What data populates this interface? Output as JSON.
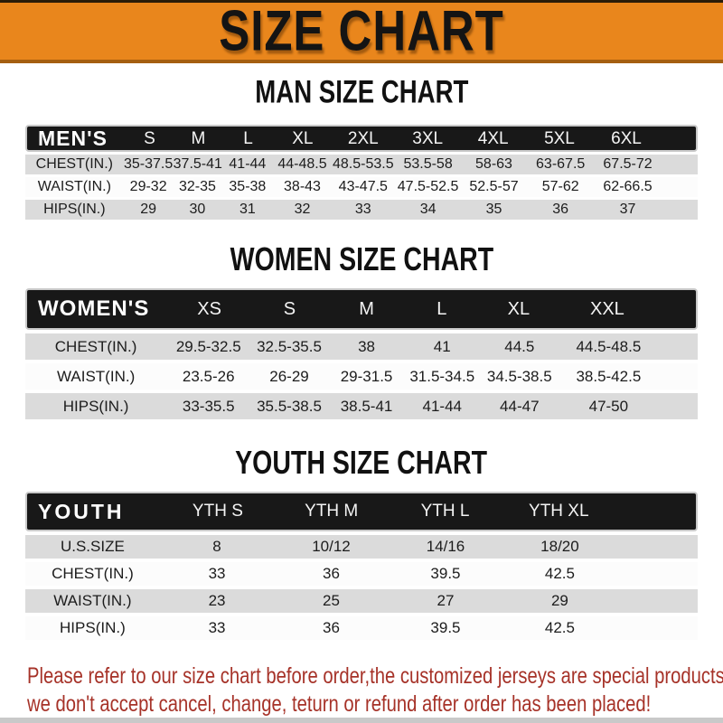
{
  "banner": {
    "title": "SIZE CHART",
    "bg_color": "#E9861C",
    "text_color": "#141414"
  },
  "sections": [
    {
      "heading": "MAN SIZE CHART",
      "header_label": "MEN'S",
      "columns": [
        "S",
        "M",
        "L",
        "XL",
        "2XL",
        "3XL",
        "4XL",
        "5XL",
        "6XL"
      ],
      "rows": [
        {
          "label": "CHEST(IN.)",
          "values": [
            "35-37.5",
            "37.5-41",
            "41-44",
            "44-48.5",
            "48.5-53.5",
            "53.5-58",
            "58-63",
            "63-67.5",
            "67.5-72"
          ]
        },
        {
          "label": "WAIST(IN.)",
          "values": [
            "29-32",
            "32-35",
            "35-38",
            "38-43",
            "43-47.5",
            "47.5-52.5",
            "52.5-57",
            "57-62",
            "62-66.5"
          ]
        },
        {
          "label": "HIPS(IN.)",
          "values": [
            "29",
            "30",
            "31",
            "32",
            "33",
            "34",
            "35",
            "36",
            "37"
          ]
        }
      ]
    },
    {
      "heading": "WOMEN SIZE CHART",
      "header_label": "WOMEN'S",
      "columns": [
        "XS",
        "S",
        "M",
        "L",
        "XL",
        "XXL"
      ],
      "rows": [
        {
          "label": "CHEST(IN.)",
          "values": [
            "29.5-32.5",
            "32.5-35.5",
            "38",
            "41",
            "44.5",
            "44.5-48.5"
          ]
        },
        {
          "label": "WAIST(IN.)",
          "values": [
            "23.5-26",
            "26-29",
            "29-31.5",
            "31.5-34.5",
            "34.5-38.5",
            "38.5-42.5"
          ]
        },
        {
          "label": "HIPS(IN.)",
          "values": [
            "33-35.5",
            "35.5-38.5",
            "38.5-41",
            "41-44",
            "44-47",
            "47-50"
          ]
        }
      ]
    },
    {
      "heading": "YOUTH SIZE CHART",
      "header_label": "YOUTH",
      "columns": [
        "YTH S",
        "YTH M",
        "YTH L",
        "YTH XL"
      ],
      "rows": [
        {
          "label": "U.S.SIZE",
          "values": [
            "8",
            "10/12",
            "14/16",
            "18/20"
          ]
        },
        {
          "label": "CHEST(IN.)",
          "values": [
            "33",
            "36",
            "39.5",
            "42.5"
          ]
        },
        {
          "label": "WAIST(IN.)",
          "values": [
            "23",
            "25",
            "27",
            "29"
          ]
        },
        {
          "label": "HIPS(IN.)",
          "values": [
            "33",
            "36",
            "39.5",
            "42.5"
          ]
        }
      ]
    }
  ],
  "footer": {
    "line1": "Please refer to our size chart before order,the customized jerseys are special products,",
    "line2": "we don't accept cancel, change, teturn or refund after order has been placed!",
    "text_color": "#A63228"
  },
  "colors": {
    "banner_orange": "#E9861C",
    "table_header_black": "#181818",
    "row_gray": "#DBDBDB",
    "row_white": "#FCFCFC",
    "footer_red": "#A63228",
    "bottom_strip_gray": "#C9C9C9"
  }
}
